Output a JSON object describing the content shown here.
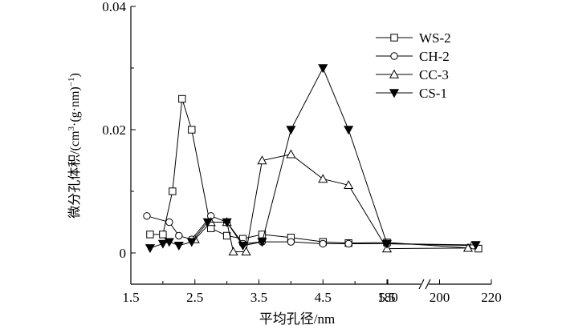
{
  "chart_data": {
    "type": "line",
    "title": "",
    "xlabel": "平均孔径/nm",
    "ylabel_main": "微分孔体积/(cm",
    "ylabel_sup1": "3",
    "ylabel_mid": "·(g·nm)",
    "ylabel_sup2": "−1",
    "ylabel_end": ")",
    "ylim": [
      0,
      0.04
    ],
    "yticks": [
      "0",
      "0.02",
      "0.04"
    ],
    "xaxis_segment_left": {
      "range": [
        1.5,
        5.5
      ],
      "ticks": [
        "1.5",
        "2.5",
        "3.5",
        "4.5",
        "5.5"
      ]
    },
    "xaxis_segment_right": {
      "range": [
        180,
        220
      ],
      "ticks": [
        "180",
        "200",
        "220"
      ]
    },
    "axis_break": true,
    "legend_position": "top-right",
    "series": [
      {
        "name": "WS-2",
        "marker": "square-open",
        "points": [
          [
            1.8,
            0.003
          ],
          [
            2.0,
            0.003
          ],
          [
            2.15,
            0.01
          ],
          [
            2.3,
            0.025
          ],
          [
            2.45,
            0.02
          ],
          [
            2.75,
            0.004
          ],
          [
            3.0,
            0.0028
          ],
          [
            3.25,
            0.0023
          ],
          [
            3.55,
            0.003
          ],
          [
            4.0,
            0.0025
          ],
          [
            4.5,
            0.0018
          ],
          [
            4.9,
            0.0016
          ],
          [
            5.5,
            0.0017
          ]
        ],
        "right_points": [
          [
            215,
            0.0007
          ]
        ]
      },
      {
        "name": "CH-2",
        "marker": "circle-open",
        "points": [
          [
            1.75,
            0.006
          ],
          [
            2.1,
            0.005
          ],
          [
            2.25,
            0.0028
          ],
          [
            2.45,
            0.0022
          ],
          [
            2.75,
            0.006
          ],
          [
            3.0,
            0.005
          ],
          [
            3.25,
            0.0015
          ],
          [
            3.55,
            0.0018
          ],
          [
            4.0,
            0.0018
          ],
          [
            4.5,
            0.0015
          ],
          [
            4.9,
            0.0015
          ],
          [
            5.5,
            0.0015
          ]
        ],
        "right_points": [
          [
            213,
            0.0012
          ]
        ]
      },
      {
        "name": "CC-3",
        "marker": "triangle-open",
        "points": [
          [
            2.5,
            0.0022
          ],
          [
            2.75,
            0.005
          ],
          [
            3.0,
            0.005
          ],
          [
            3.1,
            0.0002
          ],
          [
            3.3,
            0.0002
          ],
          [
            3.55,
            0.015
          ],
          [
            4.0,
            0.016
          ],
          [
            4.5,
            0.012
          ],
          [
            4.9,
            0.011
          ],
          [
            5.5,
            0.0007
          ]
        ],
        "right_points": [
          [
            211,
            0.0008
          ]
        ]
      },
      {
        "name": "CS-1",
        "marker": "triangle-down-filled",
        "points": [
          [
            1.8,
            0.0008
          ],
          [
            2.0,
            0.0015
          ],
          [
            2.1,
            0.0018
          ],
          [
            2.25,
            0.0012
          ],
          [
            2.45,
            0.0018
          ],
          [
            2.7,
            0.005
          ],
          [
            3.0,
            0.005
          ],
          [
            3.25,
            0.0012
          ],
          [
            3.55,
            0.0018
          ],
          [
            4.0,
            0.02
          ],
          [
            4.5,
            0.03
          ],
          [
            4.9,
            0.02
          ],
          [
            5.5,
            0.0015
          ]
        ],
        "right_points": [
          [
            214,
            0.0013
          ]
        ]
      }
    ]
  }
}
